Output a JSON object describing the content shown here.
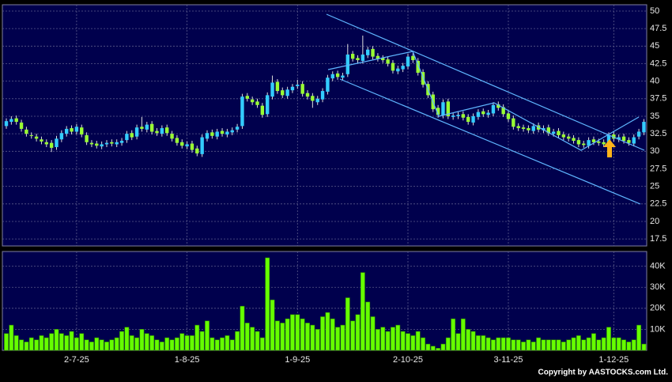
{
  "chart_data": [
    {
      "type": "candlestick",
      "up_color": "#33ccff",
      "down_color": "#99ff33",
      "wick_color": "#dddddd",
      "grid": true,
      "ylim": [
        16.5,
        50.9
      ],
      "yticks": [
        17.5,
        20,
        22.5,
        25,
        27.5,
        30,
        32.5,
        35,
        37.5,
        40,
        42.5,
        45,
        47.5,
        50
      ],
      "open": [
        33.6,
        34.2,
        34.7,
        34.1,
        33.1,
        32.3,
        32.1,
        31.7,
        31.3,
        31.2,
        30.6,
        31.7,
        32.5,
        33.3,
        32.8,
        33.4,
        32.3,
        31.2,
        31.1,
        30.7,
        31.0,
        31.3,
        31.0,
        31.2,
        31.6,
        32.6,
        32.1,
        33.5,
        33.1,
        33.9,
        32.9,
        32.5,
        33.4,
        32.5,
        31.9,
        31.3,
        30.7,
        31.1,
        30.4,
        29.6,
        31.8,
        32.7,
        32.1,
        32.9,
        32.4,
        32.7,
        33.1,
        33.6,
        37.9,
        37.4,
        37.1,
        36.5,
        35.3,
        37.8,
        39.9,
        38.7,
        37.9,
        38.7,
        39.3,
        39.6,
        38.3,
        37.9,
        37.0,
        37.4,
        38.5,
        40.4,
        41.1,
        40.5,
        41.0,
        43.9,
        43.3,
        42.9,
        43.7,
        44.6,
        43.6,
        43.3,
        43.1,
        42.6,
        41.4,
        41.7,
        42.1,
        43.6,
        42.9,
        41.3,
        39.6,
        38.1,
        36.2,
        35.1,
        37.1,
        34.9,
        35.0,
        35.3,
        34.9,
        34.1,
        34.9,
        35.7,
        35.2,
        35.4,
        36.7,
        36.3,
        35.4,
        34.7,
        33.6,
        33.4,
        33.3,
        32.9,
        33.7,
        33.0,
        33.4,
        32.5,
        32.9,
        32.4,
        32.1,
        31.9,
        31.6,
        31.1,
        30.8,
        31.7,
        31.4,
        31.3,
        30.9,
        32.4,
        31.7,
        32.1,
        31.6,
        31.1,
        32.1,
        32.7
      ],
      "high": [
        34.7,
        35.0,
        35.1,
        34.5,
        33.5,
        32.7,
        32.5,
        32.1,
        31.7,
        31.6,
        32.2,
        33.0,
        33.6,
        33.7,
        33.9,
        33.8,
        32.7,
        31.6,
        31.5,
        31.4,
        31.6,
        31.7,
        31.7,
        31.9,
        32.9,
        33.0,
        33.8,
        34.9,
        34.2,
        34.3,
        33.3,
        33.7,
        33.8,
        32.9,
        32.3,
        31.7,
        31.4,
        31.5,
        30.8,
        32.4,
        33.0,
        33.1,
        33.2,
        33.3,
        33.2,
        33.4,
        33.9,
        38.2,
        38.3,
        37.8,
        37.5,
        36.9,
        38.4,
        40.8,
        40.3,
        39.1,
        39.2,
        39.6,
        40.2,
        40.0,
        38.7,
        38.3,
        37.9,
        39.0,
        40.9,
        41.4,
        41.5,
        41.2,
        45.3,
        44.3,
        43.7,
        46.5,
        44.9,
        45.0,
        44.0,
        43.7,
        43.5,
        43.0,
        42.2,
        42.6,
        43.9,
        44.0,
        43.3,
        41.7,
        40.0,
        38.5,
        36.6,
        37.4,
        37.5,
        35.5,
        35.6,
        35.7,
        35.3,
        35.4,
        36.0,
        36.1,
        35.9,
        37.0,
        37.1,
        36.7,
        35.8,
        35.1,
        34.0,
        33.8,
        33.7,
        34.0,
        34.1,
        33.7,
        33.8,
        33.2,
        33.3,
        32.8,
        32.5,
        32.3,
        32.0,
        31.5,
        32.0,
        32.1,
        31.8,
        31.7,
        32.7,
        32.8,
        32.4,
        32.5,
        32.0,
        32.4,
        33.2,
        34.6
      ],
      "low": [
        33.2,
        33.8,
        33.8,
        32.8,
        32.1,
        31.8,
        31.4,
        31.0,
        30.6,
        29.9,
        30.2,
        31.3,
        32.1,
        32.4,
        32.4,
        32.0,
        30.9,
        30.6,
        30.4,
        30.3,
        30.6,
        30.7,
        30.6,
        30.8,
        31.2,
        31.6,
        31.7,
        32.8,
        32.7,
        32.4,
        32.2,
        32.1,
        32.2,
        31.4,
        30.8,
        30.4,
        30.3,
        29.8,
        29.3,
        29.2,
        31.4,
        31.8,
        31.7,
        32.1,
        32.0,
        32.3,
        32.7,
        33.2,
        37.1,
        36.6,
        36.2,
        34.8,
        34.9,
        37.4,
        38.2,
        37.6,
        37.5,
        38.3,
        38.9,
        37.8,
        37.4,
        36.2,
        36.6,
        37.0,
        38.1,
        40.0,
        40.2,
        40.1,
        40.6,
        42.8,
        42.6,
        42.5,
        43.3,
        43.1,
        42.8,
        42.6,
        42.1,
        41.1,
        41.0,
        41.3,
        41.7,
        42.6,
        40.8,
        39.1,
        37.6,
        35.6,
        34.8,
        34.7,
        34.6,
        34.5,
        34.6,
        34.4,
        33.8,
        33.7,
        34.5,
        34.9,
        34.8,
        35.0,
        35.8,
        34.9,
        34.2,
        33.1,
        32.9,
        32.8,
        32.6,
        32.5,
        32.7,
        32.6,
        32.2,
        32.1,
        31.9,
        31.6,
        31.4,
        31.1,
        30.6,
        30.5,
        30.4,
        30.9,
        30.8,
        30.6,
        30.5,
        31.4,
        31.3,
        31.1,
        30.8,
        30.7,
        31.7,
        32.3
      ],
      "close": [
        34.3,
        34.6,
        34.2,
        33.2,
        32.5,
        32.2,
        31.8,
        31.4,
        31.0,
        30.5,
        31.8,
        32.6,
        33.2,
        32.8,
        33.5,
        32.4,
        31.3,
        31.0,
        30.8,
        31.0,
        31.2,
        31.1,
        31.3,
        31.5,
        32.5,
        32.0,
        33.4,
        33.2,
        33.8,
        32.8,
        32.6,
        33.3,
        32.6,
        31.8,
        31.2,
        30.8,
        31.0,
        30.2,
        29.7,
        32.0,
        32.6,
        32.2,
        32.8,
        32.5,
        32.8,
        33.0,
        33.5,
        37.8,
        37.5,
        37.0,
        36.6,
        35.2,
        38.0,
        39.8,
        38.6,
        38.0,
        38.8,
        39.2,
        39.5,
        38.2,
        37.8,
        37.2,
        37.5,
        38.6,
        40.5,
        41.0,
        40.6,
        40.8,
        43.8,
        43.2,
        43.0,
        43.8,
        44.5,
        43.5,
        43.2,
        43.0,
        42.5,
        41.5,
        41.8,
        42.2,
        43.5,
        43.0,
        41.2,
        39.5,
        38.0,
        36.0,
        35.2,
        37.0,
        35.0,
        35.1,
        35.2,
        34.8,
        34.2,
        35.0,
        35.6,
        35.3,
        35.5,
        36.6,
        36.2,
        35.3,
        34.6,
        33.5,
        33.3,
        33.2,
        33.0,
        33.6,
        33.1,
        33.3,
        32.6,
        32.8,
        32.3,
        32.0,
        31.8,
        31.5,
        31.0,
        30.9,
        31.6,
        31.3,
        31.2,
        31.0,
        32.3,
        31.8,
        32.0,
        31.5,
        31.2,
        32.0,
        32.8,
        34.2
      ]
    },
    {
      "type": "bar",
      "color": "#66ff00",
      "grid": true,
      "ylim": [
        0,
        47000
      ],
      "yticks": [
        {
          "value": 10000,
          "label": "10K"
        },
        {
          "value": 20000,
          "label": "20K"
        },
        {
          "value": 30000,
          "label": "30K"
        },
        {
          "value": 40000,
          "label": "40K"
        }
      ],
      "categories": [
        null,
        null,
        null,
        null,
        null,
        null,
        null,
        null,
        null,
        null,
        null,
        null,
        null,
        null,
        "2-7-25",
        null,
        null,
        null,
        null,
        null,
        null,
        null,
        null,
        null,
        null,
        null,
        null,
        null,
        null,
        null,
        null,
        null,
        null,
        null,
        null,
        null,
        "1-8-25",
        null,
        null,
        null,
        null,
        null,
        null,
        null,
        null,
        null,
        null,
        null,
        null,
        null,
        null,
        null,
        null,
        null,
        null,
        null,
        null,
        null,
        "1-9-25",
        null,
        null,
        null,
        null,
        null,
        null,
        null,
        null,
        null,
        null,
        null,
        null,
        null,
        null,
        null,
        null,
        null,
        null,
        null,
        null,
        null,
        "2-10-25",
        null,
        null,
        null,
        null,
        null,
        null,
        null,
        null,
        null,
        null,
        null,
        null,
        null,
        null,
        null,
        null,
        null,
        null,
        null,
        "3-11-25",
        null,
        null,
        null,
        null,
        null,
        null,
        null,
        null,
        null,
        null,
        null,
        null,
        null,
        null,
        null,
        null,
        null,
        null,
        null,
        null,
        "1-12-25",
        null,
        null,
        null,
        null,
        null,
        null
      ],
      "values": [
        8000,
        12000,
        7000,
        5000,
        4000,
        6000,
        5000,
        7000,
        6000,
        8000,
        10000,
        8000,
        7000,
        9000,
        6000,
        8000,
        5000,
        4000,
        6000,
        5000,
        4000,
        5000,
        6000,
        9000,
        11000,
        7000,
        6000,
        10000,
        8000,
        7000,
        5000,
        4000,
        6000,
        5000,
        6000,
        8000,
        7000,
        7000,
        12000,
        9000,
        14000,
        6000,
        5000,
        6000,
        7000,
        5000,
        9000,
        21000,
        13000,
        11000,
        9000,
        6000,
        44000,
        24000,
        14000,
        13000,
        15000,
        17000,
        17000,
        15000,
        13000,
        12000,
        10000,
        16000,
        18000,
        15000,
        11000,
        12000,
        25000,
        14000,
        17000,
        37000,
        23000,
        16000,
        10000,
        11000,
        9000,
        11000,
        12000,
        9000,
        8000,
        7000,
        9000,
        6000,
        3000,
        2000,
        1000,
        3000,
        6000,
        15000,
        8000,
        15000,
        10000,
        9000,
        7000,
        7000,
        6000,
        5000,
        6000,
        6000,
        6000,
        5000,
        5000,
        4000,
        5000,
        4000,
        6000,
        5000,
        5000,
        5000,
        5000,
        4000,
        5000,
        6000,
        7000,
        5000,
        6000,
        8000,
        5000,
        6000,
        11000,
        6000,
        6000,
        5000,
        4000,
        5000,
        12000,
        3000
      ]
    }
  ],
  "copyright": "Copyright by AASTOCKS.com Ltd."
}
